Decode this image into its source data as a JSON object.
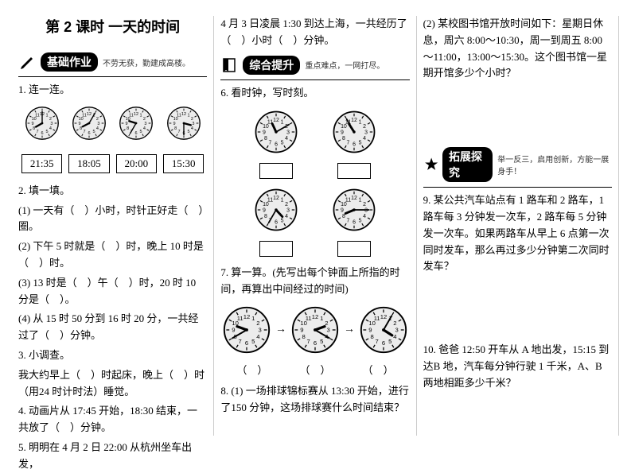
{
  "title": "第 2 课时  一天的时间",
  "sections": {
    "basic": {
      "badge": "基础作业",
      "sub": "不劳无获，勤建成高楼。"
    },
    "comp": {
      "badge": "综合提升",
      "sub": "重点难点，一网打尽。"
    },
    "ext": {
      "badge": "拓展探究",
      "sub": "举一反三，启用创新，方能一展身手！"
    }
  },
  "q1_label": "1. 连一连。",
  "q1_times": [
    "21:35",
    "18:05",
    "20:00",
    "15:30"
  ],
  "q1_clocks": [
    {
      "h": 8,
      "m": 0
    },
    {
      "h": 8,
      "m": 5
    },
    {
      "h": 9,
      "m": 35
    },
    {
      "h": 3,
      "m": 30
    }
  ],
  "q2_label": "2. 填一填。",
  "q2_items": [
    "(1) 一天有（　）小时，时针正好走（　）圈。",
    "(2) 下午 5 时就是（　）时，晚上 10 时是（　）时。",
    "(3) 13 时是（　）午（　）时，20 时 10 分是（　）。",
    "(4) 从 15 时 50 分到 16 时 20 分，一共经过了（　）分钟。"
  ],
  "q3_label": "3. 小调查。",
  "q3_text": "我大约早上（　）时起床，晚上（　）时（用24 时计时法）睡觉。",
  "q4_text": "4. 动画片从 17:45 开始，18:30 结束，一共放了（　）分钟。",
  "q5_text": "5. 明明在 4 月 2 日 22:00 从杭州坐车出发，",
  "q5_cont": "4 月 3 日凌晨 1:30 到达上海，一共经历了（　）小时（　）分钟。",
  "q6_label": "6. 看时钟，写时刻。",
  "q6_clocks_a": [
    {
      "h": 11,
      "m": 10
    },
    {
      "h": 10,
      "m": 55
    }
  ],
  "q6_clocks_b": [
    {
      "h": 4,
      "m": 35
    },
    {
      "h": 8,
      "m": 15
    }
  ],
  "q7_label": "7. 算一算。(先写出每个钟面上所指的时间，再算出中间经过的时间)",
  "q7_clocks": [
    {
      "h": 9,
      "m": 40
    },
    {
      "h": 2,
      "m": 20
    },
    {
      "h": 4,
      "m": 5
    }
  ],
  "q7_paren": "（　）",
  "q8_text": "8. (1) 一场排球锦标赛从 13:30 开始，进行了150 分钟，这场排球赛什么时间结束？",
  "q8b_text": "(2) 某校图书馆开放时间如下：星期日休息，周六 8:00～10:30，周一到周五 8:00～11:00，13:00～15:30。这个图书馆一星期开馆多少个小时？",
  "q9_text": "9. 某公共汽车站点有 1 路车和 2 路车，1 路车每 3 分钟发一次车，2 路车每 5 分钟发一次车。如果两路车从早上 6 点第一次同时发车，那么再过多少分钟第二次同时发车？",
  "q10_text": "10. 爸爸 12:50 开车从 A 地出发，15:15 到达B 地，汽车每分钟行驶 1 千米，A、B 两地相距多少千米？"
}
